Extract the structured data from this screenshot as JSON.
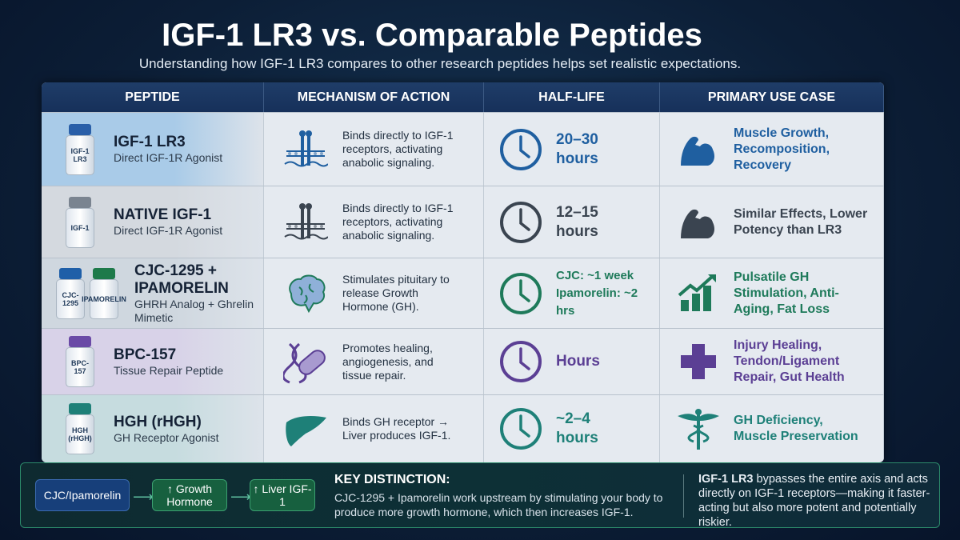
{
  "title": "IGF-1 LR3 vs. Comparable Peptides",
  "subtitle": "Understanding how IGF-1 LR3 compares to other research peptides helps set realistic expectations.",
  "headers": [
    "PEPTIDE",
    "MECHANISM OF ACTION",
    "HALF-LIFE",
    "PRIMARY USE CASE"
  ],
  "rows": [
    {
      "vials": [
        "IGF-1 LR3"
      ],
      "name": "IGF-1 LR3",
      "desc": "Direct IGF-1R Agonist",
      "mechanism_icon": "receptor-icon",
      "mechanism": "Binds directly to IGF-1 receptors, activating anabolic signaling.",
      "half_life": "20–30 hours",
      "use_icon": "flexed-arm-icon",
      "use": "Muscle Growth, Recomposition, Recovery",
      "color": "#1f5fa0",
      "bg": "#a9cbe8",
      "cap": "#2a5fa8"
    },
    {
      "vials": [
        "IGF-1"
      ],
      "name": "NATIVE IGF-1",
      "desc": "Direct IGF-1R Agonist",
      "mechanism_icon": "receptor-icon",
      "mechanism": "Binds directly to IGF-1 receptors, activating anabolic signaling.",
      "half_life": "12–15 hours",
      "use_icon": "flexed-arm-icon",
      "use": "Similar Effects, Lower Potency than LR3",
      "color": "#3a4450",
      "bg": "#d4d9df",
      "cap": "#7a8490"
    },
    {
      "vials": [
        "CJC-1295",
        "IPAMORELIN"
      ],
      "name": "CJC-1295 + IPAMORELIN",
      "desc": "GHRH Analog + Ghrelin Mimetic",
      "mechanism_icon": "brain-icon",
      "mechanism": "Stimulates pituitary to release Growth Hormone (GH).",
      "half_life": "CJC: ~1 week Ipamorelin: ~2 hrs",
      "use_icon": "growth-chart-icon",
      "use": "Pulsatile GH Stimulation, Anti-Aging, Fat Loss",
      "color": "#1e7a5a",
      "bg": "#cfd7df",
      "cap": "#1f5fa8"
    },
    {
      "vials": [
        "BPC-157"
      ],
      "name": "BPC-157",
      "desc": "Tissue Repair Peptide",
      "mechanism_icon": "dna-bandage-icon",
      "mechanism": "Promotes healing, angiogenesis, and tissue repair.",
      "half_life": "Hours",
      "use_icon": "medical-cross-icon",
      "use": "Injury Healing, Tendon/Ligament Repair, Gut Health",
      "color": "#5b3f94",
      "bg": "#d8d2e8",
      "cap": "#6a4aa6"
    },
    {
      "vials": [
        "HGH (rHGH)"
      ],
      "name": "HGH (rHGH)",
      "desc": "GH Receptor Agonist",
      "mechanism_icon": "liver-icon",
      "mechanism": "Binds GH receptor → Liver produces IGF-1.",
      "half_life": "~2–4 hours",
      "use_icon": "caduceus-icon",
      "use": "GH Deficiency, Muscle Preservation",
      "color": "#1e8078",
      "bg": "#c6dcdf",
      "cap": "#1e8078"
    }
  ],
  "flow": [
    "CJC/Ipamorelin",
    "↑ Growth Hormone",
    "↑ Liver IGF-1"
  ],
  "key_title": "KEY DISTINCTION:",
  "key_text": "CJC-1295 + Ipamorelin work upstream by stimulating your body to produce more growth hormone, which then increases IGF-1.",
  "right_bold": "IGF-1 LR3",
  "right_text": " bypasses the entire axis and acts directly on IGF-1 receptors—making it faster-acting but also more potent and potentially riskier."
}
